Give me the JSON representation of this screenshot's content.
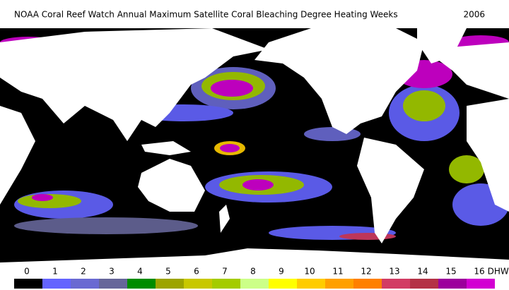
{
  "title": "NOAA Coral Reef Watch Annual Maximum Satellite Coral Bleaching Degree Heating Weeks",
  "year": "2006",
  "legend": {
    "ticks": [
      0,
      1,
      2,
      3,
      4,
      5,
      6,
      7,
      8,
      9,
      10,
      11,
      12,
      13,
      14,
      15,
      16
    ],
    "colors": [
      "#000000",
      "#6464ff",
      "#6a6ad2",
      "#66669a",
      "#008c00",
      "#9ca400",
      "#c8c800",
      "#a4cc00",
      "#ccff88",
      "#ffff00",
      "#ffcc00",
      "#ffa000",
      "#ff8000",
      "#d23c64",
      "#b43246",
      "#9c009c",
      "#d200d2"
    ],
    "unit": "DHW"
  }
}
